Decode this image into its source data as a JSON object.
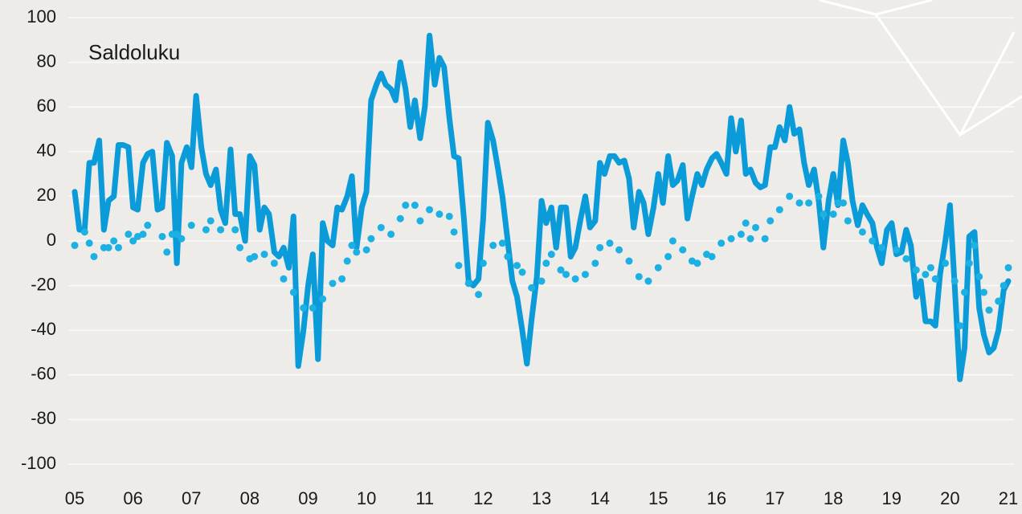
{
  "chart_data": {
    "type": "line",
    "annotation": "Saldoluku",
    "x": [
      5,
      5.08,
      5.17,
      5.25,
      5.33,
      5.42,
      5.5,
      5.58,
      5.67,
      5.75,
      5.83,
      5.92,
      6,
      6.08,
      6.17,
      6.25,
      6.33,
      6.42,
      6.5,
      6.58,
      6.67,
      6.75,
      6.83,
      6.92,
      7,
      7.08,
      7.17,
      7.25,
      7.33,
      7.42,
      7.5,
      7.58,
      7.67,
      7.75,
      7.83,
      7.92,
      8,
      8.08,
      8.17,
      8.25,
      8.33,
      8.42,
      8.5,
      8.58,
      8.67,
      8.75,
      8.83,
      8.92,
      9,
      9.08,
      9.17,
      9.25,
      9.33,
      9.42,
      9.5,
      9.58,
      9.67,
      9.75,
      9.83,
      9.92,
      10,
      10.08,
      10.17,
      10.25,
      10.33,
      10.42,
      10.5,
      10.58,
      10.67,
      10.75,
      10.83,
      10.92,
      11,
      11.08,
      11.17,
      11.25,
      11.33,
      11.42,
      11.5,
      11.58,
      11.67,
      11.75,
      11.83,
      11.92,
      12,
      12.08,
      12.17,
      12.25,
      12.33,
      12.42,
      12.5,
      12.58,
      12.67,
      12.75,
      12.83,
      12.92,
      13,
      13.08,
      13.17,
      13.25,
      13.33,
      13.42,
      13.5,
      13.58,
      13.67,
      13.75,
      13.83,
      13.92,
      14,
      14.08,
      14.17,
      14.25,
      14.33,
      14.42,
      14.5,
      14.58,
      14.67,
      14.75,
      14.83,
      14.92,
      15,
      15.08,
      15.17,
      15.25,
      15.33,
      15.42,
      15.5,
      15.58,
      15.67,
      15.75,
      15.83,
      15.92,
      16,
      16.08,
      16.17,
      16.25,
      16.33,
      16.42,
      16.5,
      16.58,
      16.67,
      16.75,
      16.83,
      16.92,
      17,
      17.08,
      17.17,
      17.25,
      17.33,
      17.42,
      17.5,
      17.58,
      17.67,
      17.75,
      17.83,
      17.92,
      18,
      18.08,
      18.17,
      18.25,
      18.33,
      18.42,
      18.5,
      18.58,
      18.67,
      18.75,
      18.83,
      18.92,
      19,
      19.08,
      19.17,
      19.25,
      19.33,
      19.42,
      19.5,
      19.58,
      19.67,
      19.75,
      19.83,
      19.92,
      20,
      20.08,
      20.17,
      20.25,
      20.33,
      20.42,
      20.5,
      20.58,
      20.67,
      20.75,
      20.83,
      20.92,
      21
    ],
    "series": [
      {
        "color": "#0b9bd9",
        "style": "line",
        "values": [
          22,
          5,
          5,
          35,
          35,
          45,
          5,
          18,
          20,
          43,
          43,
          42,
          15,
          14,
          35,
          39,
          40,
          14,
          15,
          44,
          38,
          -10,
          35,
          42,
          33,
          65,
          42,
          30,
          25,
          32,
          14,
          8,
          41,
          12,
          12,
          0,
          38,
          34,
          5,
          15,
          12,
          -5,
          -7,
          -3,
          -12,
          11,
          -56,
          -40,
          -20,
          -6,
          -53,
          8,
          0,
          -2,
          15,
          14,
          20,
          29,
          -3,
          15,
          22,
          63,
          70,
          75,
          70,
          68,
          63,
          80,
          68,
          51,
          63,
          46,
          60,
          92,
          70,
          82,
          78,
          55,
          38,
          37,
          10,
          -18,
          -20,
          -17,
          10,
          53,
          45,
          33,
          20,
          0,
          -18,
          -25,
          -40,
          -55,
          -35,
          -16,
          18,
          8,
          15,
          -3,
          15,
          15,
          -7,
          -3,
          10,
          20,
          6,
          9,
          35,
          30,
          38,
          38,
          35,
          36,
          28,
          6,
          22,
          17,
          3,
          15,
          30,
          17,
          38,
          25,
          27,
          34,
          10,
          20,
          30,
          25,
          32,
          37,
          39,
          35,
          30,
          55,
          40,
          54,
          30,
          32,
          26,
          24,
          25,
          42,
          42,
          51,
          45,
          60,
          48,
          50,
          35,
          25,
          32,
          18,
          -3,
          18,
          30,
          16,
          45,
          35,
          18,
          7,
          16,
          12,
          8,
          -3,
          -10,
          5,
          8,
          -6,
          -5,
          5,
          -2,
          -25,
          -18,
          -36,
          -36,
          -38,
          -15,
          0,
          16,
          -20,
          -62,
          -48,
          2,
          4,
          -30,
          -42,
          -50,
          -48,
          -40,
          -22,
          -18
        ]
      },
      {
        "color": "#1db0e2",
        "style": "dots",
        "values": [
          -2,
          null,
          4,
          -1,
          -7,
          null,
          -3,
          -3,
          0,
          -3,
          null,
          3,
          0,
          2,
          3,
          7,
          null,
          null,
          2,
          -5,
          3,
          3,
          1,
          null,
          7,
          null,
          null,
          5,
          9,
          null,
          5,
          null,
          null,
          5,
          -3,
          null,
          -8,
          -7,
          null,
          -6,
          null,
          -10,
          null,
          -17,
          null,
          -23,
          null,
          -30,
          null,
          -30,
          null,
          -26,
          null,
          -19,
          null,
          -17,
          -9,
          -2,
          -5,
          null,
          -4,
          1,
          null,
          6,
          null,
          3,
          null,
          10,
          16,
          null,
          16,
          9,
          null,
          14,
          null,
          12,
          null,
          11,
          4,
          -11,
          null,
          -19,
          null,
          -24,
          -10,
          null,
          -2,
          null,
          -1,
          -7,
          null,
          -11,
          -14,
          null,
          -21,
          null,
          -18,
          -10,
          -6,
          null,
          -13,
          -15,
          null,
          -17,
          null,
          -15,
          null,
          -10,
          -3,
          null,
          -1,
          null,
          -4,
          null,
          -9,
          null,
          -16,
          null,
          -18,
          null,
          -12,
          null,
          -7,
          0,
          null,
          -4,
          null,
          -9,
          -10,
          null,
          -6,
          -7,
          null,
          -1,
          null,
          1,
          null,
          3,
          8,
          1,
          6,
          null,
          1,
          9,
          null,
          14,
          null,
          20,
          null,
          17,
          null,
          17,
          null,
          20,
          12,
          null,
          12,
          17,
          17,
          9,
          null,
          null,
          4,
          null,
          0,
          null,
          -3,
          null,
          null,
          -4,
          null,
          -8,
          null,
          -13,
          null,
          -15,
          -12,
          -17,
          null,
          -10,
          null,
          -18,
          -38,
          -23,
          -10,
          -2,
          -16,
          -23,
          -31,
          null,
          -27,
          -20,
          -12
        ]
      }
    ],
    "xlim": [
      5,
      21
    ],
    "xticks": [
      {
        "value": 5,
        "label": "05"
      },
      {
        "value": 6,
        "label": "06"
      },
      {
        "value": 7,
        "label": "07"
      },
      {
        "value": 8,
        "label": "08"
      },
      {
        "value": 9,
        "label": "09"
      },
      10,
      11,
      12,
      13,
      14,
      15,
      16,
      17,
      18,
      19,
      20,
      21
    ],
    "ylim": [
      -100,
      100
    ],
    "yticks": [
      -100,
      -80,
      -60,
      -40,
      -20,
      0,
      20,
      40,
      60,
      80,
      100
    ],
    "grid": true
  }
}
